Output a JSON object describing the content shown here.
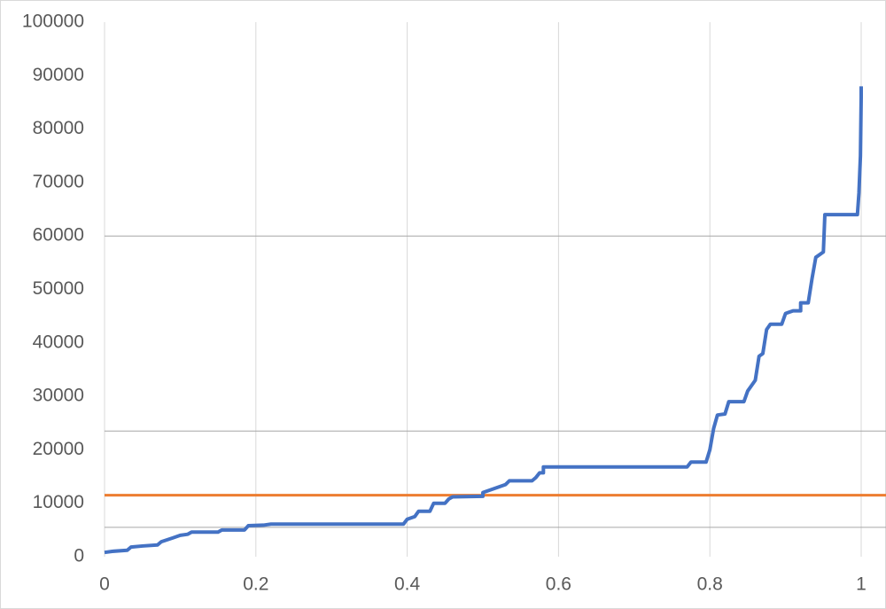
{
  "chart_data": {
    "type": "line",
    "xlim": [
      0,
      1
    ],
    "xticks": [
      0,
      0.2,
      0.4,
      0.6,
      0.8,
      1
    ],
    "ylim": [
      0,
      100000
    ],
    "yticks": [
      0,
      10000,
      20000,
      30000,
      40000,
      50000,
      60000,
      70000,
      80000,
      90000,
      100000
    ],
    "grid": "x",
    "reference_lines": [
      {
        "value": 5500,
        "color": "#a6a6a6"
      },
      {
        "value": 23500,
        "color": "#a6a6a6"
      },
      {
        "value": 60000,
        "color": "#a6a6a6"
      },
      {
        "value": 11500,
        "color": "#ed7d31"
      }
    ],
    "series": [
      {
        "color": "#4472c4",
        "x": [
          0,
          0.01,
          0.03,
          0.035,
          0.05,
          0.07,
          0.075,
          0.09,
          0.1,
          0.11,
          0.115,
          0.15,
          0.155,
          0.185,
          0.19,
          0.21,
          0.22,
          0.395,
          0.4,
          0.41,
          0.415,
          0.43,
          0.435,
          0.45,
          0.455,
          0.46,
          0.5,
          0.5,
          0.51,
          0.52,
          0.53,
          0.535,
          0.565,
          0.57,
          0.575,
          0.58,
          0.58,
          0.77,
          0.775,
          0.795,
          0.8,
          0.805,
          0.81,
          0.82,
          0.825,
          0.845,
          0.85,
          0.86,
          0.865,
          0.87,
          0.875,
          0.88,
          0.895,
          0.9,
          0.91,
          0.92,
          0.92,
          0.93,
          0.935,
          0.94,
          0.95,
          0.952,
          0.995,
          0.997,
          0.999,
          1,
          1
        ],
        "values": [
          800,
          1000,
          1200,
          1800,
          2000,
          2200,
          2800,
          3500,
          4000,
          4200,
          4600,
          4600,
          5000,
          5000,
          5800,
          5900,
          6100,
          6100,
          7000,
          7500,
          8500,
          8500,
          10000,
          10000,
          10800,
          11200,
          11300,
          12000,
          12500,
          13000,
          13500,
          14200,
          14200,
          14800,
          15700,
          15700,
          16800,
          16800,
          17700,
          17700,
          20000,
          24000,
          26500,
          26700,
          29000,
          29000,
          31000,
          33000,
          37500,
          38000,
          42500,
          43500,
          43500,
          45500,
          46000,
          46000,
          47500,
          47500,
          52000,
          56000,
          57000,
          64000,
          64000,
          68000,
          75000,
          86000,
          88000
        ]
      }
    ]
  }
}
